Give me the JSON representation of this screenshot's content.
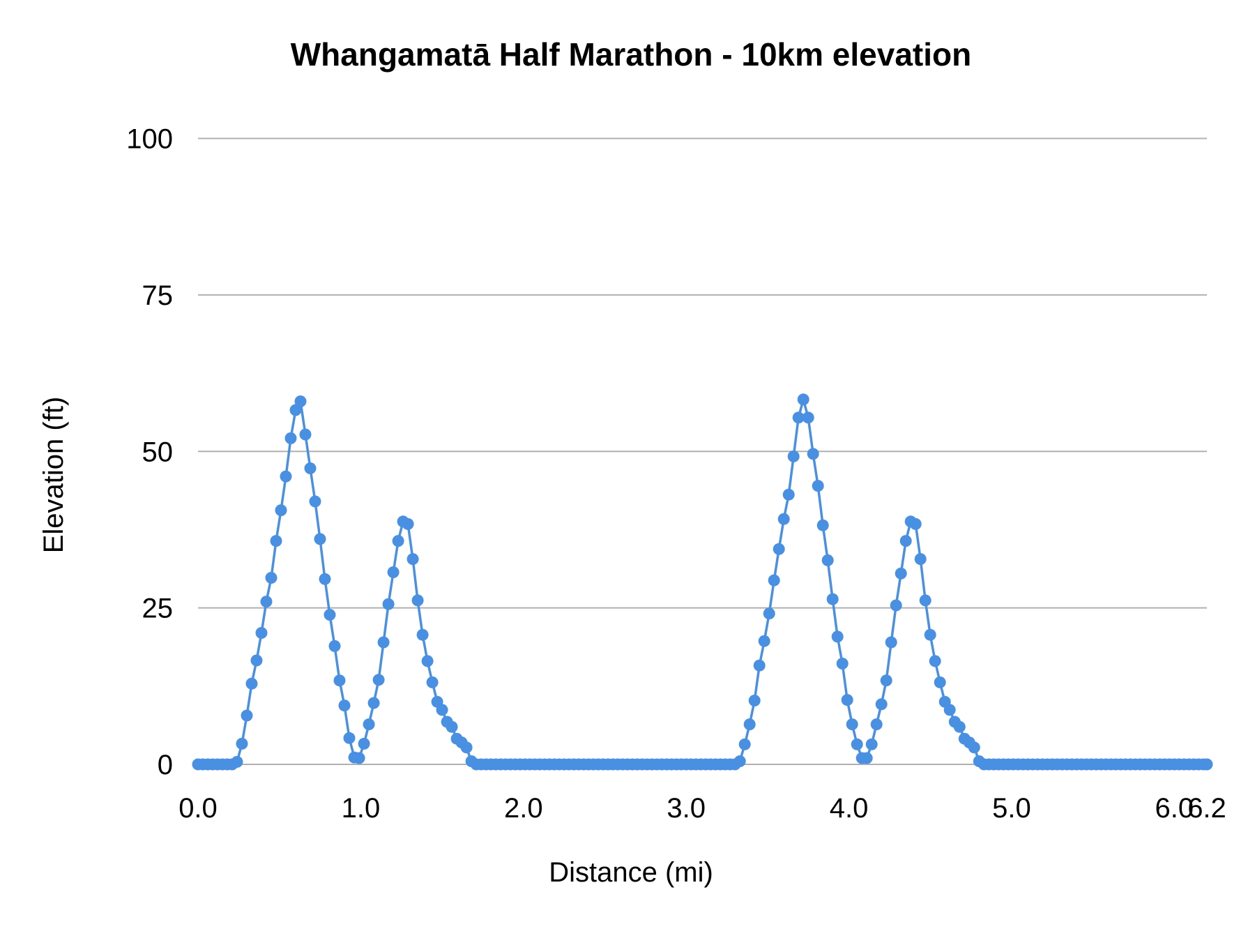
{
  "chart_data": {
    "type": "line",
    "title": "Whangamatā Half Marathon - 10km elevation",
    "xlabel": "Distance (mi)",
    "ylabel": "Elevation (ft)",
    "xlim": [
      0,
      6.2
    ],
    "ylim": [
      0,
      100
    ],
    "x_tick_labels": [
      "0.0",
      "1.0",
      "2.0",
      "3.0",
      "4.0",
      "5.0",
      "6.0",
      "6.2"
    ],
    "x_ticks": [
      0,
      1,
      2,
      3,
      4,
      5,
      6,
      6.2
    ],
    "y_tick_labels": [
      "0",
      "25",
      "50",
      "75",
      "100"
    ],
    "y_ticks": [
      0,
      25,
      50,
      75,
      100
    ],
    "grid": "horizontal",
    "markers": true,
    "color": "#4a90e2",
    "grid_color": "#b0b0b0",
    "x": [
      0.0,
      0.03,
      0.06,
      0.09,
      0.12,
      0.15,
      0.18,
      0.21,
      0.24,
      0.27,
      0.3,
      0.33,
      0.36,
      0.39,
      0.42,
      0.45,
      0.48,
      0.51,
      0.54,
      0.57,
      0.6,
      0.63,
      0.66,
      0.69,
      0.72,
      0.75,
      0.78,
      0.81,
      0.84,
      0.87,
      0.9,
      0.93,
      0.96,
      0.99,
      1.02,
      1.05,
      1.08,
      1.11,
      1.14,
      1.17,
      1.2,
      1.23,
      1.26,
      1.29,
      1.32,
      1.35,
      1.38,
      1.41,
      1.44,
      1.47,
      1.5,
      1.53,
      1.56,
      1.59,
      1.62,
      1.65,
      1.68,
      1.71,
      1.74,
      1.77,
      1.8,
      1.83,
      1.86,
      1.89,
      1.92,
      1.95,
      1.98,
      2.01,
      2.04,
      2.07,
      2.1,
      2.13,
      2.16,
      2.19,
      2.22,
      2.25,
      2.28,
      2.31,
      2.34,
      2.37,
      2.4,
      2.43,
      2.46,
      2.49,
      2.52,
      2.55,
      2.58,
      2.61,
      2.64,
      2.67,
      2.7,
      2.73,
      2.76,
      2.79,
      2.82,
      2.85,
      2.88,
      2.91,
      2.94,
      2.97,
      3.0,
      3.03,
      3.06,
      3.09,
      3.12,
      3.15,
      3.18,
      3.21,
      3.24,
      3.27,
      3.3,
      3.33,
      3.36,
      3.39,
      3.42,
      3.45,
      3.48,
      3.51,
      3.54,
      3.57,
      3.6,
      3.63,
      3.66,
      3.69,
      3.72,
      3.75,
      3.78,
      3.81,
      3.84,
      3.87,
      3.9,
      3.93,
      3.96,
      3.99,
      4.02,
      4.05,
      4.08,
      4.11,
      4.14,
      4.17,
      4.2,
      4.23,
      4.26,
      4.29,
      4.32,
      4.35,
      4.38,
      4.41,
      4.44,
      4.47,
      4.5,
      4.53,
      4.56,
      4.59,
      4.62,
      4.65,
      4.68,
      4.71,
      4.74,
      4.77,
      4.8,
      4.83,
      4.86,
      4.89,
      4.92,
      4.95,
      4.98,
      5.01,
      5.04,
      5.07,
      5.1,
      5.13,
      5.16,
      5.19,
      5.22,
      5.25,
      5.28,
      5.31,
      5.34,
      5.37,
      5.4,
      5.43,
      5.46,
      5.49,
      5.52,
      5.55,
      5.58,
      5.61,
      5.64,
      5.67,
      5.7,
      5.73,
      5.76,
      5.79,
      5.82,
      5.85,
      5.88,
      5.91,
      5.94,
      5.97,
      6.0,
      6.03,
      6.06,
      6.09,
      6.12,
      6.15,
      6.18,
      6.2
    ],
    "y": [
      0,
      0,
      0,
      0,
      0,
      0,
      0,
      0,
      0.4,
      3.3,
      7.8,
      12.9,
      16.6,
      21.0,
      26.0,
      29.8,
      35.7,
      40.6,
      46.0,
      52.1,
      56.6,
      58.0,
      52.7,
      47.3,
      42.0,
      36.0,
      29.6,
      23.9,
      18.9,
      13.4,
      9.4,
      4.2,
      1.1,
      1.0,
      3.3,
      6.4,
      9.8,
      13.5,
      19.5,
      25.6,
      30.7,
      35.7,
      38.8,
      38.4,
      32.8,
      26.2,
      20.7,
      16.5,
      13.1,
      10.0,
      8.7,
      6.8,
      6.0,
      4.1,
      3.5,
      2.7,
      0.5,
      0,
      0,
      0,
      0,
      0,
      0,
      0,
      0,
      0,
      0,
      0,
      0,
      0,
      0,
      0,
      0,
      0,
      0,
      0,
      0,
      0,
      0,
      0,
      0,
      0,
      0,
      0,
      0,
      0,
      0,
      0,
      0,
      0,
      0,
      0,
      0,
      0,
      0,
      0,
      0,
      0,
      0,
      0,
      0,
      0,
      0,
      0,
      0,
      0,
      0,
      0,
      0,
      0,
      0,
      0.5,
      3.2,
      6.4,
      10.2,
      15.8,
      19.7,
      24.1,
      29.4,
      34.4,
      39.2,
      43.1,
      49.2,
      55.4,
      58.3,
      55.4,
      49.6,
      44.5,
      38.2,
      32.6,
      26.4,
      20.4,
      16.1,
      10.3,
      6.4,
      3.2,
      1.0,
      1.0,
      3.2,
      6.4,
      9.6,
      13.4,
      19.5,
      25.4,
      30.5,
      35.7,
      38.8,
      38.4,
      32.8,
      26.2,
      20.7,
      16.5,
      13.1,
      10.0,
      8.7,
      6.8,
      6.0,
      4.1,
      3.5,
      2.7,
      0.5,
      0,
      0,
      0,
      0,
      0,
      0,
      0,
      0,
      0,
      0,
      0,
      0,
      0,
      0,
      0,
      0,
      0,
      0,
      0,
      0,
      0,
      0,
      0,
      0,
      0,
      0,
      0,
      0,
      0,
      0,
      0,
      0,
      0,
      0,
      0,
      0,
      0,
      0,
      0,
      0,
      0,
      0,
      0,
      0,
      0,
      0,
      0
    ]
  }
}
